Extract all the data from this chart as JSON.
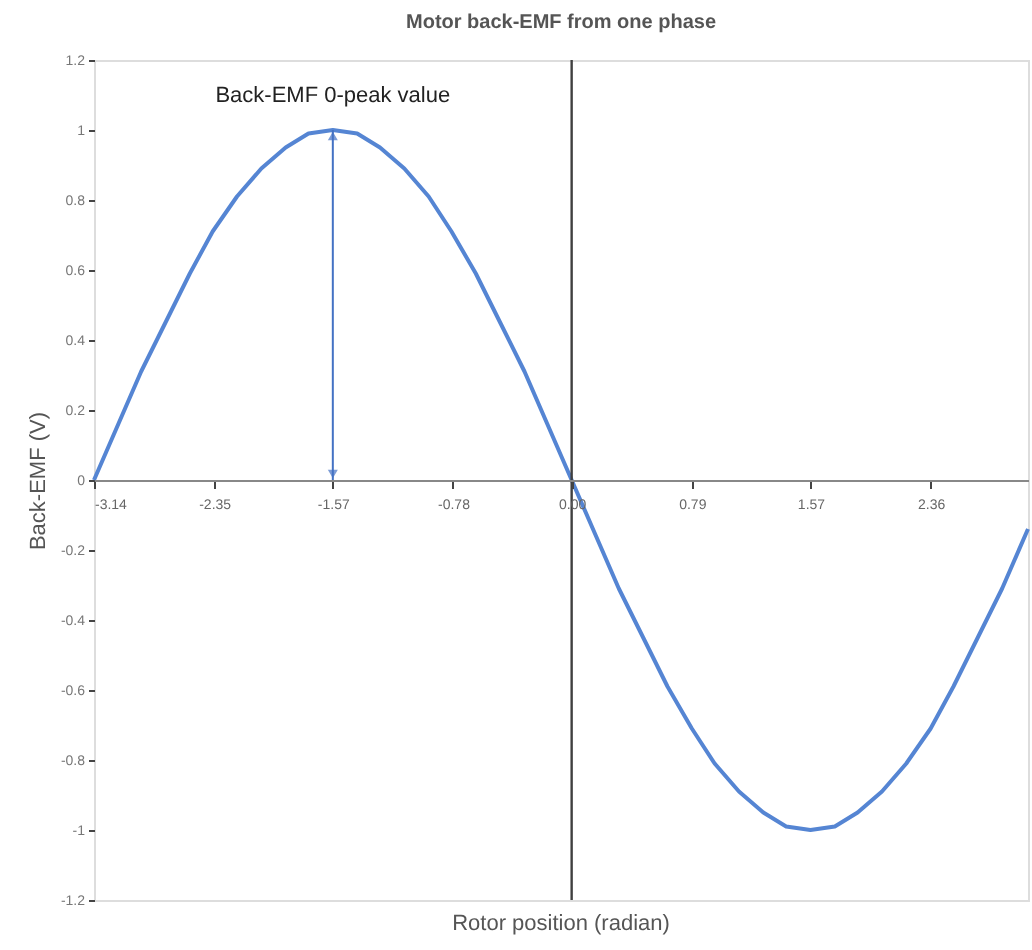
{
  "chart_data": {
    "type": "line",
    "title": "Motor back-EMF from one phase",
    "xlabel": "Rotor position (radian)",
    "ylabel": "Back-EMF (V)",
    "x": [
      -3.14,
      -2.98,
      -2.83,
      -2.67,
      -2.51,
      -2.36,
      -2.2,
      -2.04,
      -1.88,
      -1.73,
      -1.57,
      -1.41,
      -1.26,
      -1.1,
      -0.94,
      -0.79,
      -0.63,
      -0.47,
      -0.31,
      -0.16,
      0,
      0.16,
      0.31,
      0.47,
      0.63,
      0.79,
      0.94,
      1.1,
      1.26,
      1.41,
      1.57,
      1.73,
      1.88,
      2.04,
      2.2,
      2.36,
      2.51,
      2.67,
      2.83,
      3.0
    ],
    "series": [
      {
        "color": "#5585d3",
        "values": [
          0,
          0.16,
          0.31,
          0.45,
          0.59,
          0.71,
          0.81,
          0.89,
          0.95,
          0.99,
          1,
          0.99,
          0.95,
          0.89,
          0.81,
          0.71,
          0.59,
          0.45,
          0.31,
          0.16,
          0,
          -0.16,
          -0.31,
          -0.45,
          -0.59,
          -0.71,
          -0.81,
          -0.89,
          -0.95,
          -0.99,
          -1,
          -0.99,
          -0.95,
          -0.89,
          -0.81,
          -0.71,
          -0.59,
          -0.45,
          -0.31,
          -0.14
        ]
      }
    ],
    "xlim": [
      -3.14,
      3.0
    ],
    "xticks": [
      -3.14,
      -2.35,
      -1.57,
      -0.78,
      {
        "value": 0,
        "label": "0.00"
      },
      0.79,
      1.57,
      2.36
    ],
    "ylim": [
      -1.2,
      1.2
    ],
    "yticks": [
      -1.2,
      -1,
      -0.8,
      -0.6,
      -0.4,
      -0.2,
      0,
      0.2,
      0.4,
      0.6,
      0.8,
      1,
      1.2
    ],
    "ref_lines": [
      {
        "axis": "x",
        "value": 0,
        "color": "#404040"
      }
    ],
    "annotations": [
      {
        "text": "Back-EMF 0-peak value",
        "x": -1.57,
        "y": 1
      }
    ],
    "grid": false,
    "marker": "none",
    "line_style": "solid"
  }
}
